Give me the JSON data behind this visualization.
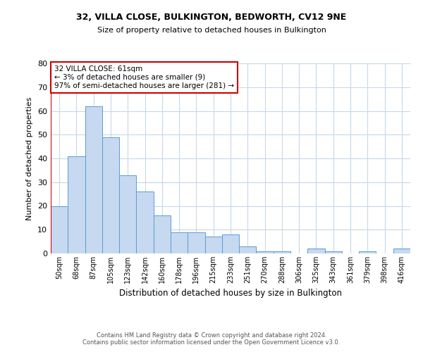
{
  "title1": "32, VILLA CLOSE, BULKINGTON, BEDWORTH, CV12 9NE",
  "title2": "Size of property relative to detached houses in Bulkington",
  "xlabel": "Distribution of detached houses by size in Bulkington",
  "ylabel": "Number of detached properties",
  "categories": [
    "50sqm",
    "68sqm",
    "87sqm",
    "105sqm",
    "123sqm",
    "142sqm",
    "160sqm",
    "178sqm",
    "196sqm",
    "215sqm",
    "233sqm",
    "251sqm",
    "270sqm",
    "288sqm",
    "306sqm",
    "325sqm",
    "343sqm",
    "361sqm",
    "379sqm",
    "398sqm",
    "416sqm"
  ],
  "values": [
    20,
    41,
    62,
    49,
    33,
    26,
    16,
    9,
    9,
    7,
    8,
    3,
    1,
    1,
    0,
    2,
    1,
    0,
    1,
    0,
    2
  ],
  "bar_color": "#c6d9f0",
  "bar_edge_color": "#5b9bd5",
  "ylim": [
    0,
    80
  ],
  "yticks": [
    0,
    10,
    20,
    30,
    40,
    50,
    60,
    70,
    80
  ],
  "annotation_title": "32 VILLA CLOSE: 61sqm",
  "annotation_line1": "← 3% of detached houses are smaller (9)",
  "annotation_line2": "97% of semi-detached houses are larger (281) →",
  "annotation_box_color": "#ffffff",
  "annotation_box_edge": "#cc0000",
  "red_line_color": "#cc0000",
  "footer1": "Contains HM Land Registry data © Crown copyright and database right 2024.",
  "footer2": "Contains public sector information licensed under the Open Government Licence v3.0.",
  "background_color": "#ffffff",
  "grid_color": "#c8d8e8"
}
